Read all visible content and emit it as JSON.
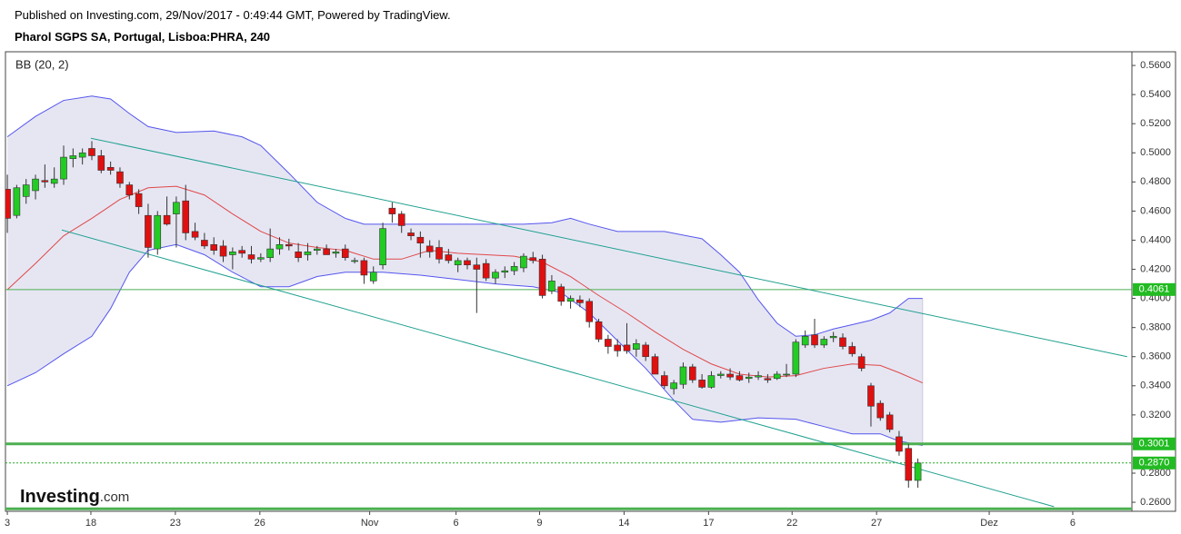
{
  "header": {
    "published": "Published on Investing.com, 29/Nov/2017 - 0:49:44 GMT, Powered by TradingView.",
    "symbol": "Pharol SGPS SA, Portugal, Lisboa:PHRA, 240"
  },
  "logo": {
    "brand": "Investing",
    "suffix": ".com"
  },
  "chart_data": {
    "type": "candlestick",
    "legend": "BB (20, 2)",
    "up_color": "#22cc22",
    "down_color": "#e01010",
    "ohlc": [
      [
        0.475,
        0.485,
        0.445,
        0.455
      ],
      [
        0.457,
        0.478,
        0.455,
        0.476
      ],
      [
        0.47,
        0.482,
        0.465,
        0.478
      ],
      [
        0.474,
        0.485,
        0.468,
        0.482
      ],
      [
        0.481,
        0.492,
        0.476,
        0.48
      ],
      [
        0.479,
        0.49,
        0.476,
        0.482
      ],
      [
        0.482,
        0.505,
        0.478,
        0.497
      ],
      [
        0.496,
        0.503,
        0.49,
        0.498
      ],
      [
        0.497,
        0.503,
        0.492,
        0.5
      ],
      [
        0.503,
        0.508,
        0.495,
        0.498
      ],
      [
        0.498,
        0.502,
        0.486,
        0.488
      ],
      [
        0.49,
        0.494,
        0.485,
        0.488
      ],
      [
        0.487,
        0.49,
        0.476,
        0.479
      ],
      [
        0.478,
        0.48,
        0.468,
        0.471
      ],
      [
        0.472,
        0.475,
        0.458,
        0.463
      ],
      [
        0.457,
        0.465,
        0.428,
        0.435
      ],
      [
        0.434,
        0.46,
        0.43,
        0.457
      ],
      [
        0.457,
        0.47,
        0.45,
        0.451
      ],
      [
        0.458,
        0.47,
        0.435,
        0.466
      ],
      [
        0.467,
        0.478,
        0.44,
        0.445
      ],
      [
        0.446,
        0.452,
        0.44,
        0.442
      ],
      [
        0.44,
        0.445,
        0.434,
        0.436
      ],
      [
        0.437,
        0.442,
        0.43,
        0.433
      ],
      [
        0.436,
        0.44,
        0.425,
        0.429
      ],
      [
        0.43,
        0.435,
        0.42,
        0.432
      ],
      [
        0.433,
        0.436,
        0.428,
        0.431
      ],
      [
        0.43,
        0.436,
        0.424,
        0.427
      ],
      [
        0.427,
        0.431,
        0.425,
        0.428
      ],
      [
        0.428,
        0.448,
        0.425,
        0.434
      ],
      [
        0.434,
        0.442,
        0.43,
        0.437
      ],
      [
        0.437,
        0.441,
        0.433,
        0.436
      ],
      [
        0.432,
        0.438,
        0.425,
        0.428
      ],
      [
        0.43,
        0.438,
        0.426,
        0.432
      ],
      [
        0.433,
        0.436,
        0.43,
        0.434
      ],
      [
        0.434,
        0.437,
        0.43,
        0.43
      ],
      [
        0.431,
        0.434,
        0.428,
        0.432
      ],
      [
        0.434,
        0.437,
        0.426,
        0.428
      ],
      [
        0.426,
        0.428,
        0.424,
        0.426
      ],
      [
        0.426,
        0.428,
        0.41,
        0.416
      ],
      [
        0.412,
        0.422,
        0.41,
        0.418
      ],
      [
        0.423,
        0.452,
        0.42,
        0.448
      ],
      [
        0.462,
        0.466,
        0.452,
        0.458
      ],
      [
        0.458,
        0.46,
        0.445,
        0.45
      ],
      [
        0.445,
        0.448,
        0.44,
        0.443
      ],
      [
        0.442,
        0.446,
        0.428,
        0.438
      ],
      [
        0.436,
        0.44,
        0.428,
        0.432
      ],
      [
        0.435,
        0.44,
        0.424,
        0.427
      ],
      [
        0.43,
        0.434,
        0.424,
        0.426
      ],
      [
        0.423,
        0.428,
        0.418,
        0.426
      ],
      [
        0.426,
        0.428,
        0.42,
        0.423
      ],
      [
        0.423,
        0.428,
        0.39,
        0.42
      ],
      [
        0.424,
        0.427,
        0.412,
        0.414
      ],
      [
        0.414,
        0.42,
        0.41,
        0.418
      ],
      [
        0.418,
        0.422,
        0.414,
        0.419
      ],
      [
        0.419,
        0.425,
        0.416,
        0.422
      ],
      [
        0.421,
        0.431,
        0.418,
        0.429
      ],
      [
        0.428,
        0.432,
        0.424,
        0.426
      ],
      [
        0.427,
        0.43,
        0.4,
        0.402
      ],
      [
        0.405,
        0.416,
        0.403,
        0.412
      ],
      [
        0.408,
        0.41,
        0.395,
        0.398
      ],
      [
        0.398,
        0.402,
        0.393,
        0.4
      ],
      [
        0.399,
        0.402,
        0.394,
        0.397
      ],
      [
        0.398,
        0.4,
        0.38,
        0.384
      ],
      [
        0.384,
        0.386,
        0.37,
        0.372
      ],
      [
        0.372,
        0.375,
        0.362,
        0.367
      ],
      [
        0.368,
        0.372,
        0.36,
        0.364
      ],
      [
        0.368,
        0.383,
        0.362,
        0.364
      ],
      [
        0.365,
        0.372,
        0.36,
        0.369
      ],
      [
        0.368,
        0.37,
        0.357,
        0.36
      ],
      [
        0.36,
        0.362,
        0.348,
        0.348
      ],
      [
        0.347,
        0.35,
        0.338,
        0.34
      ],
      [
        0.338,
        0.344,
        0.334,
        0.342
      ],
      [
        0.341,
        0.356,
        0.338,
        0.353
      ],
      [
        0.353,
        0.355,
        0.342,
        0.344
      ],
      [
        0.344,
        0.348,
        0.338,
        0.339
      ],
      [
        0.339,
        0.35,
        0.338,
        0.347
      ],
      [
        0.347,
        0.35,
        0.345,
        0.348
      ],
      [
        0.348,
        0.352,
        0.344,
        0.346
      ],
      [
        0.347,
        0.35,
        0.343,
        0.344
      ],
      [
        0.345,
        0.349,
        0.342,
        0.346
      ],
      [
        0.346,
        0.35,
        0.344,
        0.347
      ],
      [
        0.345,
        0.348,
        0.342,
        0.344
      ],
      [
        0.345,
        0.35,
        0.344,
        0.348
      ],
      [
        0.348,
        0.355,
        0.346,
        0.348
      ],
      [
        0.348,
        0.372,
        0.346,
        0.37
      ],
      [
        0.368,
        0.378,
        0.366,
        0.374
      ],
      [
        0.375,
        0.386,
        0.366,
        0.368
      ],
      [
        0.368,
        0.374,
        0.366,
        0.372
      ],
      [
        0.373,
        0.377,
        0.37,
        0.374
      ],
      [
        0.373,
        0.376,
        0.365,
        0.367
      ],
      [
        0.367,
        0.37,
        0.36,
        0.362
      ],
      [
        0.36,
        0.362,
        0.35,
        0.352
      ],
      [
        0.34,
        0.342,
        0.312,
        0.326
      ],
      [
        0.328,
        0.33,
        0.316,
        0.318
      ],
      [
        0.32,
        0.322,
        0.308,
        0.31
      ],
      [
        0.305,
        0.309,
        0.292,
        0.295
      ],
      [
        0.297,
        0.3,
        0.27,
        0.275
      ],
      [
        0.275,
        0.29,
        0.27,
        0.287
      ]
    ],
    "bands": {
      "fill": "#dcdcee",
      "upper": {
        "color": "#5555ee",
        "x": [
          0,
          3,
          6,
          9,
          11,
          13,
          15,
          18,
          22,
          25,
          27,
          30,
          33,
          36,
          38,
          40,
          45,
          50,
          55,
          58,
          60,
          62,
          65,
          70,
          74,
          76,
          78,
          80,
          82,
          84,
          86,
          88,
          90,
          92,
          94,
          96,
          97.5
        ],
        "values": [
          0.511,
          0.525,
          0.536,
          0.539,
          0.537,
          0.527,
          0.518,
          0.514,
          0.515,
          0.511,
          0.505,
          0.486,
          0.466,
          0.455,
          0.451,
          0.451,
          0.451,
          0.451,
          0.451,
          0.452,
          0.455,
          0.451,
          0.446,
          0.446,
          0.441,
          0.43,
          0.418,
          0.399,
          0.383,
          0.374,
          0.375,
          0.379,
          0.382,
          0.385,
          0.39,
          0.4,
          0.4
        ]
      },
      "middle": {
        "color": "#e04848",
        "x": [
          0,
          3,
          6,
          9,
          12,
          15,
          18,
          21,
          24,
          27,
          30,
          33,
          36,
          39,
          42,
          45,
          48,
          51,
          54,
          57,
          60,
          63,
          66,
          69,
          72,
          75,
          78,
          81,
          84,
          87,
          90,
          93,
          95,
          97.5
        ],
        "values": [
          0.406,
          0.424,
          0.443,
          0.455,
          0.468,
          0.476,
          0.477,
          0.471,
          0.458,
          0.446,
          0.438,
          0.435,
          0.433,
          0.427,
          0.427,
          0.433,
          0.431,
          0.43,
          0.429,
          0.425,
          0.415,
          0.402,
          0.39,
          0.377,
          0.365,
          0.355,
          0.348,
          0.346,
          0.347,
          0.352,
          0.355,
          0.354,
          0.349,
          0.342
        ]
      },
      "lower": {
        "color": "#5555ee",
        "x": [
          0,
          3,
          6,
          9,
          11,
          13,
          15,
          18,
          21,
          24,
          27,
          30,
          33,
          36,
          40,
          44,
          48,
          52,
          56,
          59,
          62,
          65,
          68,
          71,
          73,
          76,
          80,
          84,
          87,
          90,
          93,
          95,
          97.5
        ],
        "values": [
          0.34,
          0.349,
          0.362,
          0.374,
          0.393,
          0.418,
          0.433,
          0.437,
          0.43,
          0.418,
          0.408,
          0.408,
          0.415,
          0.418,
          0.418,
          0.416,
          0.413,
          0.41,
          0.408,
          0.404,
          0.39,
          0.371,
          0.352,
          0.33,
          0.317,
          0.315,
          0.318,
          0.317,
          0.312,
          0.307,
          0.307,
          0.302,
          0.299
        ]
      }
    },
    "trendlines": [
      {
        "color": "#20a090",
        "x": [
          8.9,
          119.3
        ],
        "values": [
          0.51,
          0.36
        ]
      },
      {
        "color": "#20a090",
        "x": [
          5.8,
          111.5
        ],
        "values": [
          0.447,
          0.257
        ]
      }
    ],
    "price_lines": [
      {
        "value": 0.4061,
        "label": "0.4061",
        "color": "#4caf50",
        "width": 1,
        "dash": "none"
      },
      {
        "value": 0.3001,
        "label": "0.3001",
        "color": "#4caf50",
        "width": 3,
        "dash": "none"
      },
      {
        "value": 0.287,
        "label": "0.2870",
        "color": "#22aa22",
        "width": 1,
        "dash": "2,2"
      },
      {
        "value": 0.2555,
        "color": "#4caf50",
        "width": 3,
        "dash": "none"
      }
    ],
    "xlim": [
      -0.2,
      119.8
    ],
    "xticks": [
      {
        "value": 0,
        "label": "3"
      },
      {
        "value": 8.9,
        "label": "18"
      },
      {
        "value": 17.9,
        "label": "23"
      },
      {
        "value": 26.9,
        "label": "26"
      },
      {
        "value": 38.6,
        "label": "Nov"
      },
      {
        "value": 47.8,
        "label": "6"
      },
      {
        "value": 56.7,
        "label": "9"
      },
      {
        "value": 65.7,
        "label": "14"
      },
      {
        "value": 74.7,
        "label": "17"
      },
      {
        "value": 83.6,
        "label": "22"
      },
      {
        "value": 92.6,
        "label": "27"
      },
      {
        "value": 104.6,
        "label": "Dez"
      },
      {
        "value": 113.5,
        "label": "6"
      }
    ],
    "ylim": [
      0.2538,
      0.5694
    ],
    "yticks": [
      {
        "value": 0.26,
        "label": "0.2600"
      },
      {
        "value": 0.28,
        "label": "0.2800"
      },
      {
        "value": 0.3,
        "label": "0.3000"
      },
      {
        "value": 0.32,
        "label": "0.3200"
      },
      {
        "value": 0.34,
        "label": "0.3400"
      },
      {
        "value": 0.36,
        "label": "0.3600"
      },
      {
        "value": 0.38,
        "label": "0.3800"
      },
      {
        "value": 0.4,
        "label": "0.4000"
      },
      {
        "value": 0.42,
        "label": "0.4200"
      },
      {
        "value": 0.44,
        "label": "0.4400"
      },
      {
        "value": 0.46,
        "label": "0.4600"
      },
      {
        "value": 0.48,
        "label": "0.4800"
      },
      {
        "value": 0.5,
        "label": "0.5000"
      },
      {
        "value": 0.52,
        "label": "0.5200"
      },
      {
        "value": 0.54,
        "label": "0.5400"
      },
      {
        "value": 0.56,
        "label": "0.5600"
      }
    ]
  }
}
